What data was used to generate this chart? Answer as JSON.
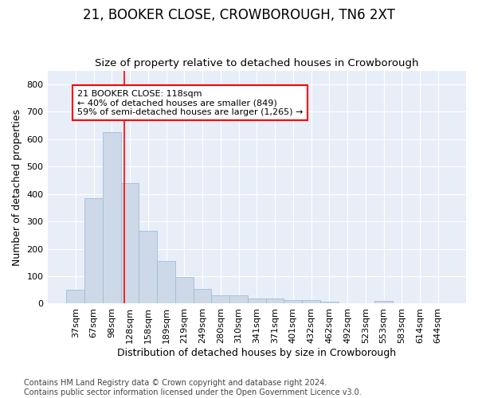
{
  "title": "21, BOOKER CLOSE, CROWBOROUGH, TN6 2XT",
  "subtitle": "Size of property relative to detached houses in Crowborough",
  "xlabel": "Distribution of detached houses by size in Crowborough",
  "ylabel": "Number of detached properties",
  "bar_labels": [
    "37sqm",
    "67sqm",
    "98sqm",
    "128sqm",
    "158sqm",
    "189sqm",
    "219sqm",
    "249sqm",
    "280sqm",
    "310sqm",
    "341sqm",
    "371sqm",
    "401sqm",
    "432sqm",
    "462sqm",
    "492sqm",
    "523sqm",
    "553sqm",
    "583sqm",
    "614sqm",
    "644sqm"
  ],
  "bar_values": [
    50,
    385,
    625,
    440,
    265,
    155,
    98,
    55,
    30,
    30,
    18,
    18,
    13,
    13,
    8,
    0,
    0,
    9,
    0,
    0,
    0
  ],
  "bar_color": "#cdd9e8",
  "bar_edge_color": "#a0bcda",
  "background_color": "#e8eef8",
  "grid_color": "#ffffff",
  "red_line_x": 2.67,
  "annotation_box_text": "21 BOOKER CLOSE: 118sqm\n← 40% of detached houses are smaller (849)\n59% of semi-detached houses are larger (1,265) →",
  "ylim": [
    0,
    850
  ],
  "yticks": [
    0,
    100,
    200,
    300,
    400,
    500,
    600,
    700,
    800
  ],
  "footer": "Contains HM Land Registry data © Crown copyright and database right 2024.\nContains public sector information licensed under the Open Government Licence v3.0.",
  "title_fontsize": 12,
  "subtitle_fontsize": 9.5,
  "xlabel_fontsize": 9,
  "ylabel_fontsize": 9,
  "tick_fontsize": 8,
  "footer_fontsize": 7,
  "annot_fontsize": 8
}
